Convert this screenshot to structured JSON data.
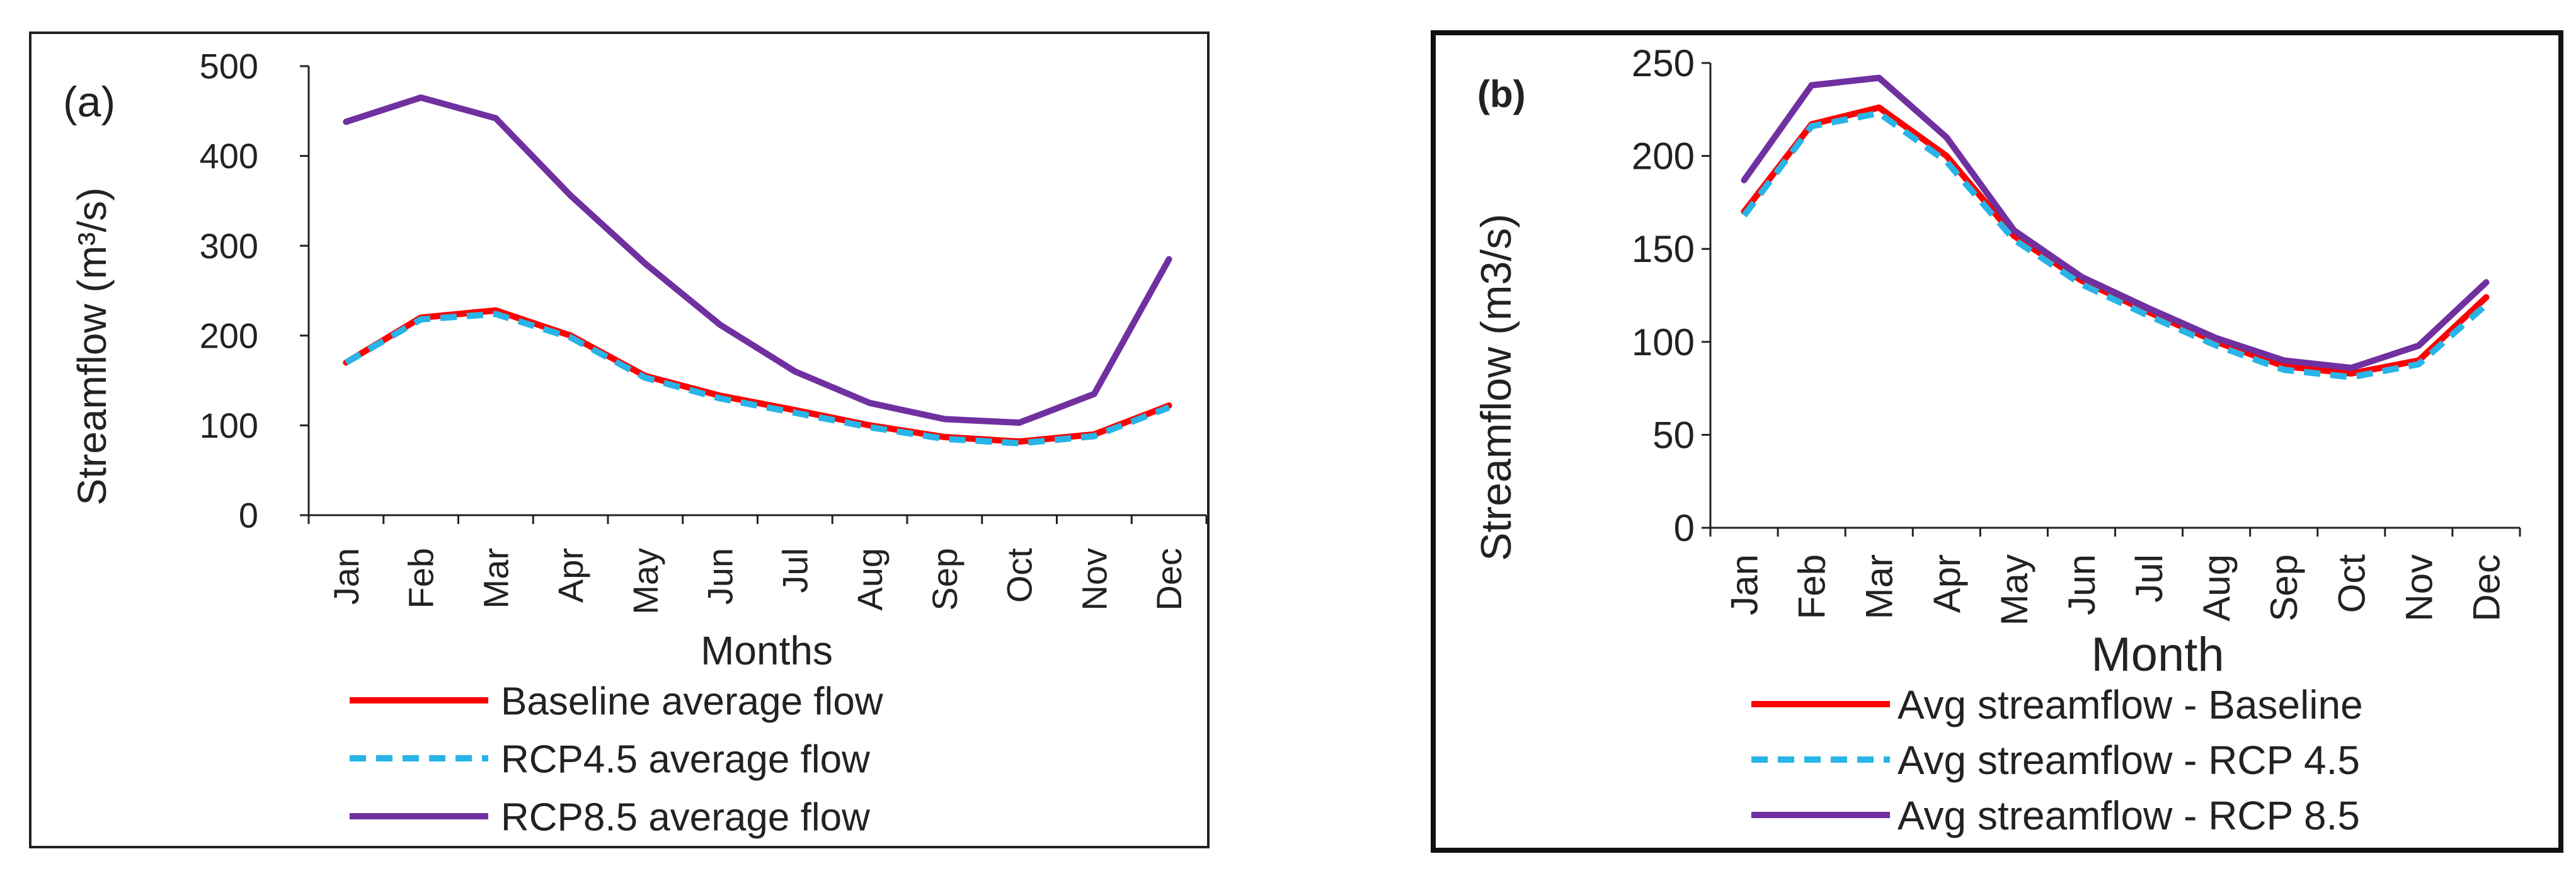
{
  "chart_data": [
    {
      "type": "line",
      "panel_label": "(a)",
      "title": "",
      "xlabel": "Months",
      "ylabel": "Streamflow (m³/s)",
      "categories": [
        "Jan",
        "Feb",
        "Mar",
        "Apr",
        "May",
        "Jun",
        "Jul",
        "Aug",
        "Sep",
        "Oct",
        "Nov",
        "Dec"
      ],
      "ylim": [
        0,
        500
      ],
      "yticks": [
        0,
        100,
        200,
        300,
        400,
        500
      ],
      "grid": false,
      "legend_position": "bottom",
      "series": [
        {
          "name": "Baseline average flow",
          "color": "#ff0000",
          "dash": "solid",
          "values": [
            170,
            220,
            228,
            200,
            155,
            133,
            117,
            100,
            87,
            82,
            90,
            122
          ]
        },
        {
          "name": "RCP4.5 average flow",
          "color": "#28b4e6",
          "dash": "dashed",
          "values": [
            170,
            218,
            224,
            198,
            153,
            130,
            114,
            98,
            85,
            80,
            88,
            120
          ]
        },
        {
          "name": "RCP8.5 average flow",
          "color": "#7030a0",
          "dash": "solid",
          "values": [
            438,
            465,
            442,
            356,
            280,
            212,
            160,
            125,
            107,
            103,
            135,
            285
          ]
        }
      ]
    },
    {
      "type": "line",
      "panel_label": "(b)",
      "title": "",
      "xlabel": "Month",
      "ylabel": "Streamflow (m3/s)",
      "categories": [
        "Jan",
        "Feb",
        "Mar",
        "Apr",
        "May",
        "Jun",
        "Jul",
        "Aug",
        "Sep",
        "Oct",
        "Nov",
        "Dec"
      ],
      "ylim": [
        0,
        250
      ],
      "yticks": [
        0,
        50,
        100,
        150,
        200,
        250
      ],
      "grid": false,
      "legend_position": "bottom",
      "series": [
        {
          "name": "Avg streamflow - Baseline",
          "color": "#ff0000",
          "dash": "solid",
          "values": [
            170,
            217,
            226,
            200,
            157,
            133,
            116,
            100,
            87,
            83,
            90,
            124
          ]
        },
        {
          "name": "Avg streamflow - RCP 4.5",
          "color": "#28b4e6",
          "dash": "dashed",
          "values": [
            168,
            216,
            223,
            197,
            155,
            131,
            114,
            98,
            85,
            81,
            88,
            120
          ]
        },
        {
          "name": "Avg streamflow - RCP 8.5",
          "color": "#7030a0",
          "dash": "solid",
          "values": [
            187,
            238,
            242,
            210,
            160,
            135,
            118,
            102,
            90,
            86,
            98,
            132
          ]
        }
      ]
    }
  ]
}
